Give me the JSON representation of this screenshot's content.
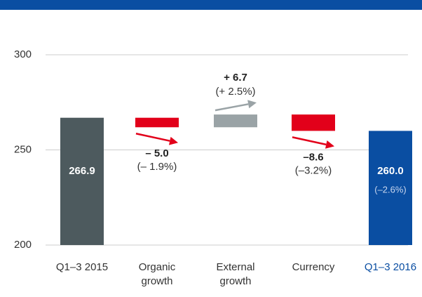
{
  "chart_data": {
    "type": "waterfall",
    "categories": [
      "Q1–3 2015",
      "Organic growth",
      "External growth",
      "Currency",
      "Q1–3 2016"
    ],
    "values": [
      266.9,
      -5.0,
      6.7,
      -8.6,
      260.0
    ],
    "value_labels": [
      "266.9",
      "– 5.0",
      "+ 6.7",
      "–8.6",
      "260.0"
    ],
    "change_labels": [
      null,
      "(– 1.9%)",
      "(+ 2.5%)",
      "(–3.2%)",
      "(–2.6%)"
    ],
    "colors": [
      "#4d5a5e",
      "#e2001a",
      "#9aa3a6",
      "#e2001a",
      "#0a4ea2"
    ],
    "ylim": [
      200,
      300
    ],
    "yticks": [
      200,
      250,
      300
    ],
    "grid": true
  }
}
